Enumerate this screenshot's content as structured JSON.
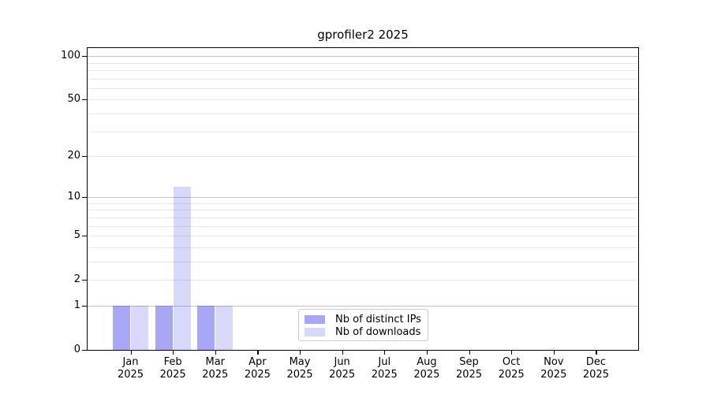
{
  "chart_data": {
    "type": "bar",
    "title": "gprofiler2 2025",
    "x_categories": [
      "Jan",
      "Feb",
      "Mar",
      "Apr",
      "May",
      "Jun",
      "Jul",
      "Aug",
      "Sep",
      "Oct",
      "Nov",
      "Dec"
    ],
    "x_sublabel": "2025",
    "series": [
      {
        "name": "Nb of distinct IPs",
        "color": "rgba(60,60,235,0.45)",
        "values": [
          1,
          1,
          1,
          0,
          0,
          0,
          0,
          0,
          0,
          0,
          0,
          0
        ]
      },
      {
        "name": "Nb of downloads",
        "color": "rgba(60,60,235,0.2)",
        "values": [
          1,
          12,
          1,
          0,
          0,
          0,
          0,
          0,
          0,
          0,
          0,
          0
        ]
      }
    ],
    "y_axis": {
      "scale": "log1p",
      "labeled_ticks": [
        0,
        1,
        2,
        5,
        10,
        20,
        50,
        100
      ],
      "major_gridlines": [
        1,
        10,
        100
      ],
      "minor_gridlines": [
        2,
        3,
        4,
        5,
        6,
        7,
        8,
        9,
        20,
        30,
        40,
        50,
        60,
        70,
        80,
        90
      ],
      "ylim": [
        0,
        115
      ]
    },
    "legend": {
      "position": "lower center"
    },
    "grid": true
  },
  "colors": {
    "major_grid": "#c3c3c3",
    "minor_grid": "#e8e8e8",
    "spine": "#000000",
    "legend_border": "#cccccc"
  }
}
